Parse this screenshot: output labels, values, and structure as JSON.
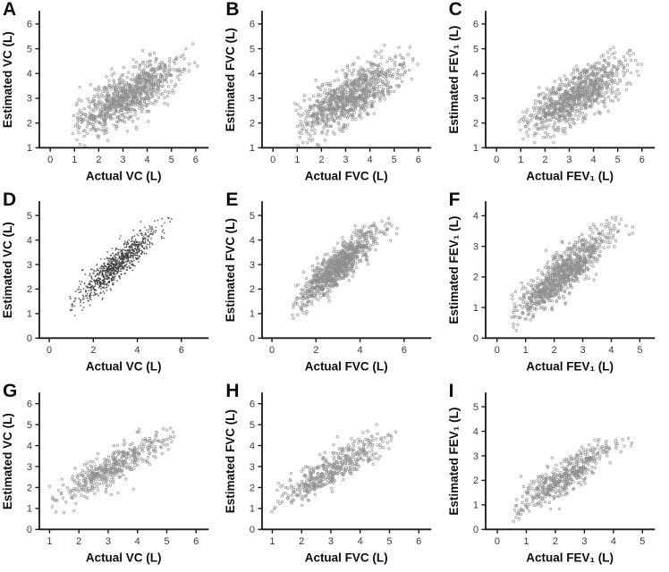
{
  "page": {
    "background": "#ffffff"
  },
  "figure": {
    "rows": 3,
    "columns": 3,
    "axis_color": "#1a1a1a",
    "tick_label_color": "#3a3a3a",
    "axis_title_color": "#0d0d0d",
    "marker_color_open": "#8f8f8f",
    "marker_color_dot": "#3b3b3b"
  },
  "chart_data": [
    {
      "label": "A",
      "type": "scatter",
      "marker": "open",
      "xlabel": "Actual VC (L)",
      "ylabel": "Estimated VC (L)",
      "xticks": [
        0,
        1,
        2,
        3,
        4,
        5,
        6
      ],
      "yticks": [
        1,
        2,
        3,
        4,
        5,
        6
      ],
      "xlim": [
        -0.45,
        6.5
      ],
      "ylim": [
        1,
        6.5
      ],
      "points": {
        "n": 870,
        "seed": 101,
        "mean_x": 3.2,
        "sd_x": 1.05,
        "mean_y": 3.1,
        "sd_y": 0.72,
        "r": 0.73,
        "x_range": [
          0.9,
          6.15
        ],
        "y_range": [
          1.05,
          5.2
        ]
      }
    },
    {
      "label": "B",
      "type": "scatter",
      "marker": "open",
      "xlabel": "Actual FVC (L)",
      "ylabel": "Estimated FVC (L)",
      "xticks": [
        0,
        1,
        2,
        3,
        4,
        5,
        6
      ],
      "yticks": [
        1,
        2,
        3,
        4,
        5,
        6
      ],
      "xlim": [
        -0.45,
        6.5
      ],
      "ylim": [
        1,
        6.5
      ],
      "points": {
        "n": 870,
        "seed": 202,
        "mean_x": 3.2,
        "sd_x": 1.05,
        "mean_y": 3.1,
        "sd_y": 0.72,
        "r": 0.73,
        "x_range": [
          0.9,
          6.15
        ],
        "y_range": [
          1.05,
          5.2
        ]
      }
    },
    {
      "label": "C",
      "type": "scatter",
      "marker": "open",
      "xlabel": "Actual FEV₁ (L)",
      "ylabel": "Estimated FEV₁ (L)",
      "xticks": [
        0,
        1,
        2,
        3,
        4,
        5,
        6
      ],
      "yticks": [
        1,
        2,
        3,
        4,
        5,
        6
      ],
      "xlim": [
        -0.45,
        6.5
      ],
      "ylim": [
        1,
        6.5
      ],
      "points": {
        "n": 870,
        "seed": 303,
        "mean_x": 3.3,
        "sd_x": 1.0,
        "mean_y": 3.1,
        "sd_y": 0.7,
        "r": 0.72,
        "x_range": [
          0.8,
          6.15
        ],
        "y_range": [
          1.05,
          5.2
        ]
      }
    },
    {
      "label": "D",
      "type": "scatter",
      "marker": "dot",
      "xlabel": "Actual VC (L)",
      "ylabel": "Estimated VC (L)",
      "xticks": [
        0,
        2,
        4,
        6
      ],
      "yticks": [
        0,
        1,
        2,
        3,
        4,
        5
      ],
      "xlim": [
        -0.45,
        7.2
      ],
      "ylim": [
        0,
        5.55
      ],
      "points": {
        "n": 870,
        "seed": 404,
        "mean_x": 3.0,
        "sd_x": 0.92,
        "mean_y": 2.95,
        "sd_y": 0.78,
        "r": 0.9,
        "x_range": [
          0.9,
          6.15
        ],
        "y_range": [
          0.65,
          5.0
        ]
      }
    },
    {
      "label": "E",
      "type": "scatter",
      "marker": "open",
      "xlabel": "Actual FVC (L)",
      "ylabel": "Estimated FVC (L)",
      "xticks": [
        0,
        2,
        4,
        6
      ],
      "yticks": [
        0,
        1,
        2,
        3,
        4,
        5
      ],
      "xlim": [
        -0.45,
        7.2
      ],
      "ylim": [
        0,
        5.55
      ],
      "points": {
        "n": 870,
        "seed": 505,
        "mean_x": 3.0,
        "sd_x": 0.95,
        "mean_y": 2.9,
        "sd_y": 0.82,
        "r": 0.89,
        "x_range": [
          0.9,
          6.2
        ],
        "y_range": [
          0.5,
          4.9
        ]
      }
    },
    {
      "label": "F",
      "type": "scatter",
      "marker": "open",
      "xlabel": "Actual FEV₁ (L)",
      "ylabel": "Estimated FEV₁ (L)",
      "xticks": [
        0,
        1,
        2,
        3,
        4,
        5
      ],
      "yticks": [
        0,
        1,
        2,
        3,
        4
      ],
      "xlim": [
        -0.4,
        5.5
      ],
      "ylim": [
        0,
        4.45
      ],
      "points": {
        "n": 870,
        "seed": 606,
        "mean_x": 2.3,
        "sd_x": 0.85,
        "mean_y": 2.1,
        "sd_y": 0.72,
        "r": 0.88,
        "x_range": [
          0.4,
          4.85
        ],
        "y_range": [
          0.1,
          3.95
        ]
      }
    },
    {
      "label": "G",
      "type": "scatter",
      "marker": "open",
      "xlabel": "Actual VC (L)",
      "ylabel": "Estimated VC (L)",
      "xticks": [
        1,
        2,
        3,
        4,
        5,
        6
      ],
      "yticks": [
        0,
        1,
        2,
        3,
        4,
        5,
        6
      ],
      "xlim": [
        0.65,
        6.4
      ],
      "ylim": [
        0,
        6.5
      ],
      "points": {
        "n": 440,
        "seed": 707,
        "mean_x": 3.2,
        "sd_x": 0.95,
        "mean_y": 3.0,
        "sd_y": 0.85,
        "r": 0.87,
        "x_range": [
          1.0,
          5.45
        ],
        "y_range": [
          0.8,
          5.05
        ]
      }
    },
    {
      "label": "H",
      "type": "scatter",
      "marker": "open",
      "xlabel": "Actual FVC (L)",
      "ylabel": "Estimated FVC (L)",
      "xticks": [
        1,
        2,
        3,
        4,
        5,
        6
      ],
      "yticks": [
        0,
        1,
        2,
        3,
        4,
        5,
        6
      ],
      "xlim": [
        0.65,
        6.4
      ],
      "ylim": [
        0,
        6.5
      ],
      "points": {
        "n": 440,
        "seed": 808,
        "mean_x": 3.1,
        "sd_x": 0.95,
        "mean_y": 2.9,
        "sd_y": 0.85,
        "r": 0.87,
        "x_range": [
          0.95,
          5.35
        ],
        "y_range": [
          0.8,
          5.05
        ]
      }
    },
    {
      "label": "I",
      "type": "scatter",
      "marker": "open",
      "xlabel": "Actual FEV₁ (L)",
      "ylabel": "Estimated FEV₁ (L)",
      "xticks": [
        0,
        1,
        2,
        3,
        4,
        5
      ],
      "yticks": [
        0,
        1,
        2,
        3,
        4,
        5
      ],
      "xlim": [
        -0.4,
        5.4
      ],
      "ylim": [
        0,
        5.55
      ],
      "points": {
        "n": 470,
        "seed": 909,
        "mean_x": 2.3,
        "sd_x": 0.85,
        "mean_y": 2.15,
        "sd_y": 0.73,
        "r": 0.88,
        "x_range": [
          0.55,
          4.7
        ],
        "y_range": [
          0.3,
          3.95
        ]
      }
    }
  ]
}
